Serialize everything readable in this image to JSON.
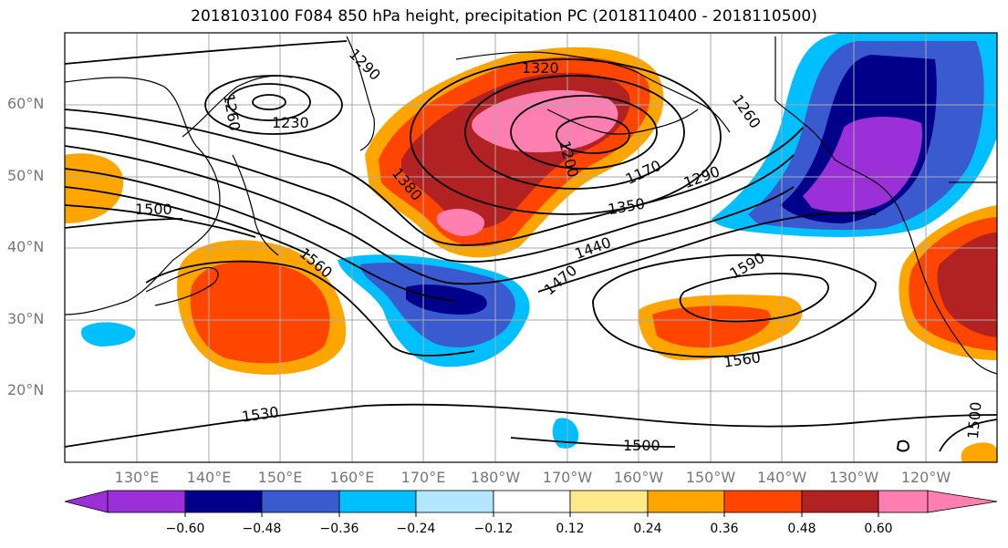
{
  "title": "2018103100 F084 850 hPa height, precipitation PC (2018110400 - 2018110500)",
  "latitude_labels": [
    "60°N",
    "50°N",
    "40°N",
    "30°N",
    "20°N"
  ],
  "longitude_labels": [
    "130°E",
    "140°E",
    "150°E",
    "160°E",
    "170°E",
    "180°W",
    "170°W",
    "160°W",
    "150°W",
    "140°W",
    "130°W",
    "120°W"
  ],
  "contour_labels": [
    "1290",
    "1260",
    "1230",
    "1320",
    "1260",
    "1200",
    "1170",
    "1290",
    "1500",
    "1380",
    "1350",
    "1440",
    "1470",
    "1590",
    "1560",
    "1560",
    "1530",
    "1500",
    "1500"
  ],
  "colorbar": {
    "ticks": [
      "−0.60",
      "−0.48",
      "−0.36",
      "−0.24",
      "−0.12",
      "0.12",
      "0.24",
      "0.36",
      "0.48",
      "0.60"
    ],
    "colors": [
      "#9b30d8",
      "#00008b",
      "#3a5bd0",
      "#00bfff",
      "#b3e6ff",
      "#ffffff",
      "#ffe98a",
      "#ffa500",
      "#ff4500",
      "#b22222",
      "#ff7fb0"
    ]
  }
}
